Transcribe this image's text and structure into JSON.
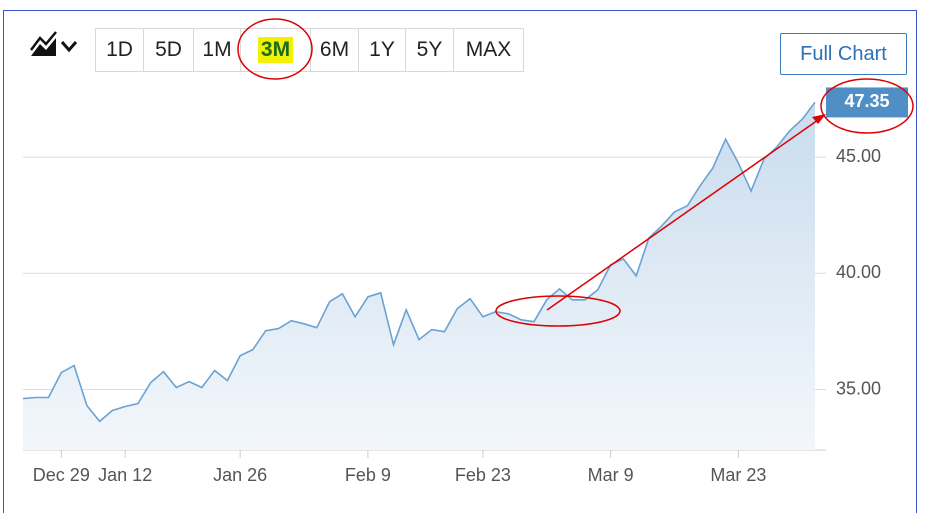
{
  "range_buttons": [
    "1D",
    "5D",
    "1M",
    "3M",
    "6M",
    "1Y",
    "5Y",
    "MAX"
  ],
  "selected_range": 3,
  "full_chart_button": "Full Chart",
  "chart_data": {
    "type": "area",
    "categories": [
      null,
      null,
      null,
      "Dec 29",
      null,
      null,
      null,
      null,
      "Jan 12",
      null,
      null,
      null,
      null,
      null,
      null,
      null,
      null,
      "Jan 26",
      null,
      null,
      null,
      null,
      null,
      null,
      null,
      null,
      null,
      "Feb 9",
      null,
      null,
      null,
      null,
      null,
      null,
      null,
      null,
      "Feb 23",
      null,
      null,
      null,
      null,
      null,
      null,
      null,
      null,
      null,
      "Mar 9",
      null,
      null,
      null,
      null,
      null,
      null,
      null,
      null,
      null,
      "Mar 23",
      null,
      null,
      null,
      null,
      null,
      null
    ],
    "series": [
      {
        "color": "#6aa3d3",
        "values": [
          34.61,
          34.66,
          34.66,
          35.73,
          36.03,
          34.31,
          33.63,
          34.1,
          34.27,
          34.4,
          35.3,
          35.77,
          35.09,
          35.34,
          35.09,
          35.82,
          35.39,
          36.46,
          36.72,
          37.53,
          37.62,
          37.96,
          37.83,
          37.66,
          38.78,
          39.12,
          38.13,
          38.99,
          39.16,
          36.93,
          38.43,
          37.15,
          37.58,
          37.49,
          38.48,
          38.91,
          38.13,
          38.35,
          38.26,
          38.0,
          37.92,
          38.86,
          39.33,
          38.86,
          38.86,
          39.29,
          40.36,
          40.62,
          39.89,
          41.52,
          42.04,
          42.64,
          42.9,
          43.76,
          44.53,
          45.77,
          44.74,
          43.54,
          44.91,
          45.43,
          46.12,
          46.63,
          47.35
        ]
      }
    ],
    "ylim": [
      32.4,
      48.1
    ],
    "yticks": [
      {
        "value": 35,
        "label": "35.00"
      },
      {
        "value": 40,
        "label": "40.00"
      },
      {
        "value": 45,
        "label": "45.00"
      }
    ],
    "grid": true
  }
}
